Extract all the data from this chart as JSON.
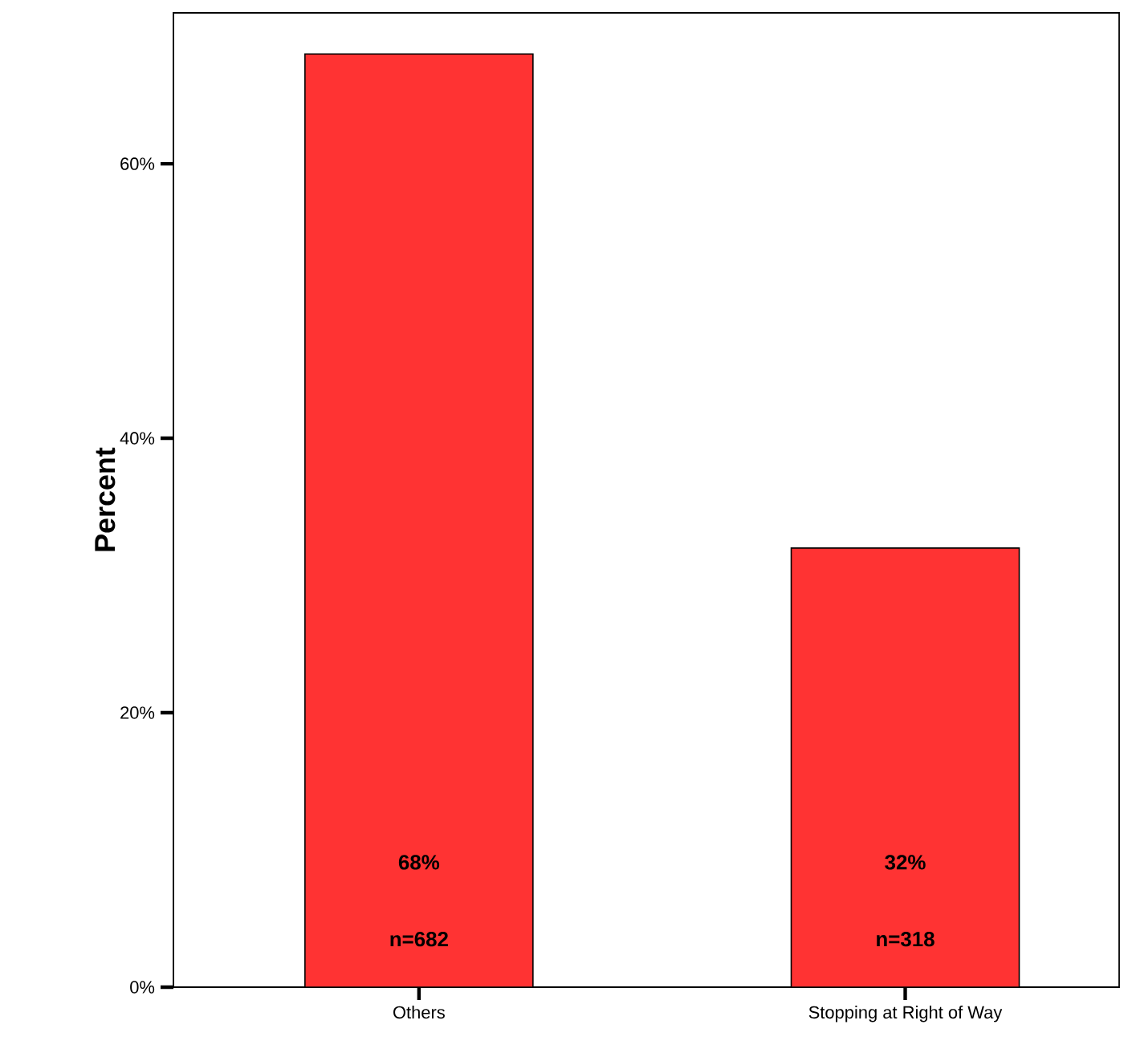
{
  "chart_data": {
    "type": "bar",
    "ylabel": "Percent",
    "categories": [
      "Others",
      "Stopping at Right of Way"
    ],
    "values": [
      68,
      32
    ],
    "color": "#ff3333",
    "value_labels": [
      "68%",
      "32%"
    ],
    "ylim": [
      0,
      71
    ],
    "yticks": [
      {
        "value": 0,
        "label": "0%"
      },
      {
        "value": 20,
        "label": "20%"
      },
      {
        "value": 40,
        "label": "40%"
      },
      {
        "value": 60,
        "label": "60%"
      }
    ],
    "annotations": [
      "n=682",
      "n=318"
    ],
    "grid": false
  }
}
